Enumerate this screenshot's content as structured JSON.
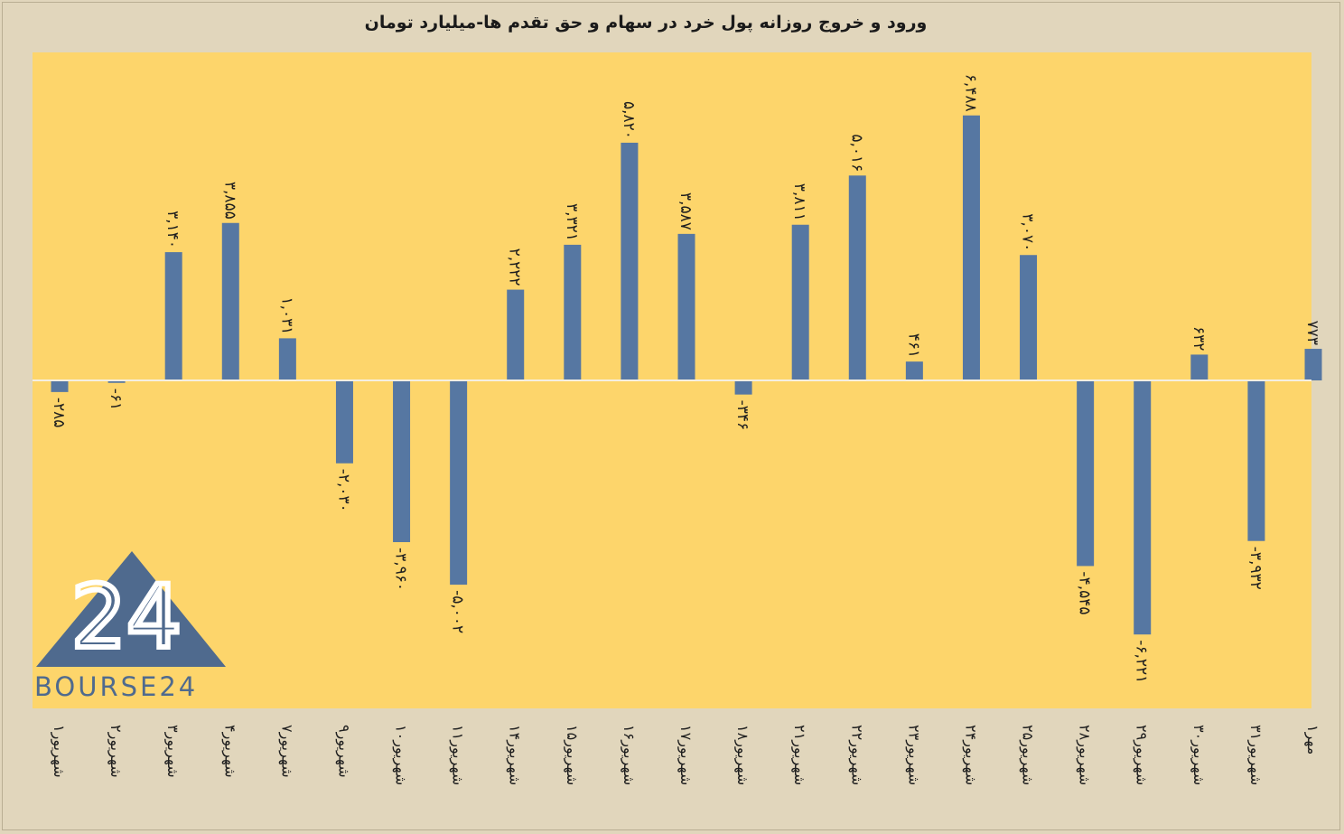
{
  "colors": {
    "page_bg": "#e1d6bc",
    "plot_bg": "#fdd56b",
    "bar": "#5677a2",
    "zero_line": "#f5efe1",
    "logo": "#4f6a8e"
  },
  "logo": {
    "text": "BOURSE24",
    "mark": "24"
  },
  "chart_data": {
    "type": "bar",
    "title": "ورود و خروج روزانه پول خرد در سهام و حق تقدم ها-میلیارد تومان",
    "xlabel": "",
    "ylabel": "",
    "ylim": [
      -7000,
      7000
    ],
    "grid": false,
    "legend": "none",
    "categories": [
      "۱شهریور",
      "۲شهریور",
      "۳شهریور",
      "۴شهریور",
      "۷شهریور",
      "۹شهریور",
      "۱۰شهریور",
      "۱۱شهریور",
      "۱۴شهریور",
      "۱۵شهریور",
      "۱۶شهریور",
      "۱۷شهریور",
      "۱۸شهریور",
      "۲۱شهریور",
      "۲۲شهریور",
      "۲۳شهریور",
      "۲۴شهریور",
      "۲۵شهریور",
      "۲۸شهریور",
      "۲۹شهریور",
      "۳۰شهریور",
      "۳۱شهریور",
      "۱مهر"
    ],
    "values": [
      -285,
      -61,
      3140,
      3855,
      1031,
      -2030,
      -3960,
      -5002,
      2222,
      3321,
      5820,
      3587,
      -346,
      3811,
      5016,
      461,
      6488,
      3070,
      -4545,
      -6221,
      632,
      -3932,
      773
    ],
    "data_labels": [
      "-۲۸۵",
      "-۶۱",
      "۳,۱۴۰",
      "۳,۸۵۵",
      "۱,۰۳۱",
      "-۲,۰۳۰",
      "-۳,۹۶۰",
      "-۵,۰۰۲",
      "۲,۲۲۲",
      "۳,۳۲۱",
      "۵,۸۲۰",
      "۳,۵۸۷",
      "-۳۴۶",
      "۳,۸۱۱",
      "۵,۰۱۶",
      "۴۶۱",
      "۶,۴۸۸",
      "۳,۰۷۰",
      "-۴,۵۴۵",
      "-۶,۲۲۱",
      "۶۳۲",
      "-۳,۹۳۲",
      "۷۷۳"
    ]
  }
}
